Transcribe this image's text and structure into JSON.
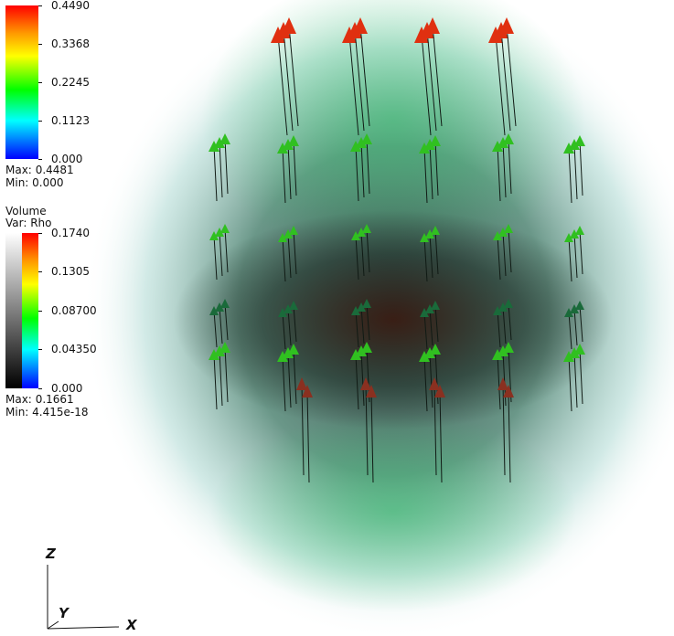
{
  "vector_legend": {
    "ticks": [
      "0.4490",
      "0.3368",
      "0.2245",
      "0.1123",
      "0.000"
    ],
    "max_label": "Max:",
    "max_value": "0.4481",
    "min_label": "Min:",
    "min_value": "0.000"
  },
  "volume_legend": {
    "title": "Volume",
    "var_label": "Var: Rho",
    "ticks": [
      "0.1740",
      "0.1305",
      "0.08700",
      "0.04350",
      "0.000"
    ],
    "max_label": "Max:",
    "max_value": "0.1661",
    "min_label": "Min:",
    "min_value": "4.415e-18"
  },
  "axes": {
    "z": "Z",
    "y": "Y",
    "x": "X"
  },
  "colors": {
    "high": "#e03010",
    "mid": "#30c020",
    "low": "#1a6a3a"
  }
}
